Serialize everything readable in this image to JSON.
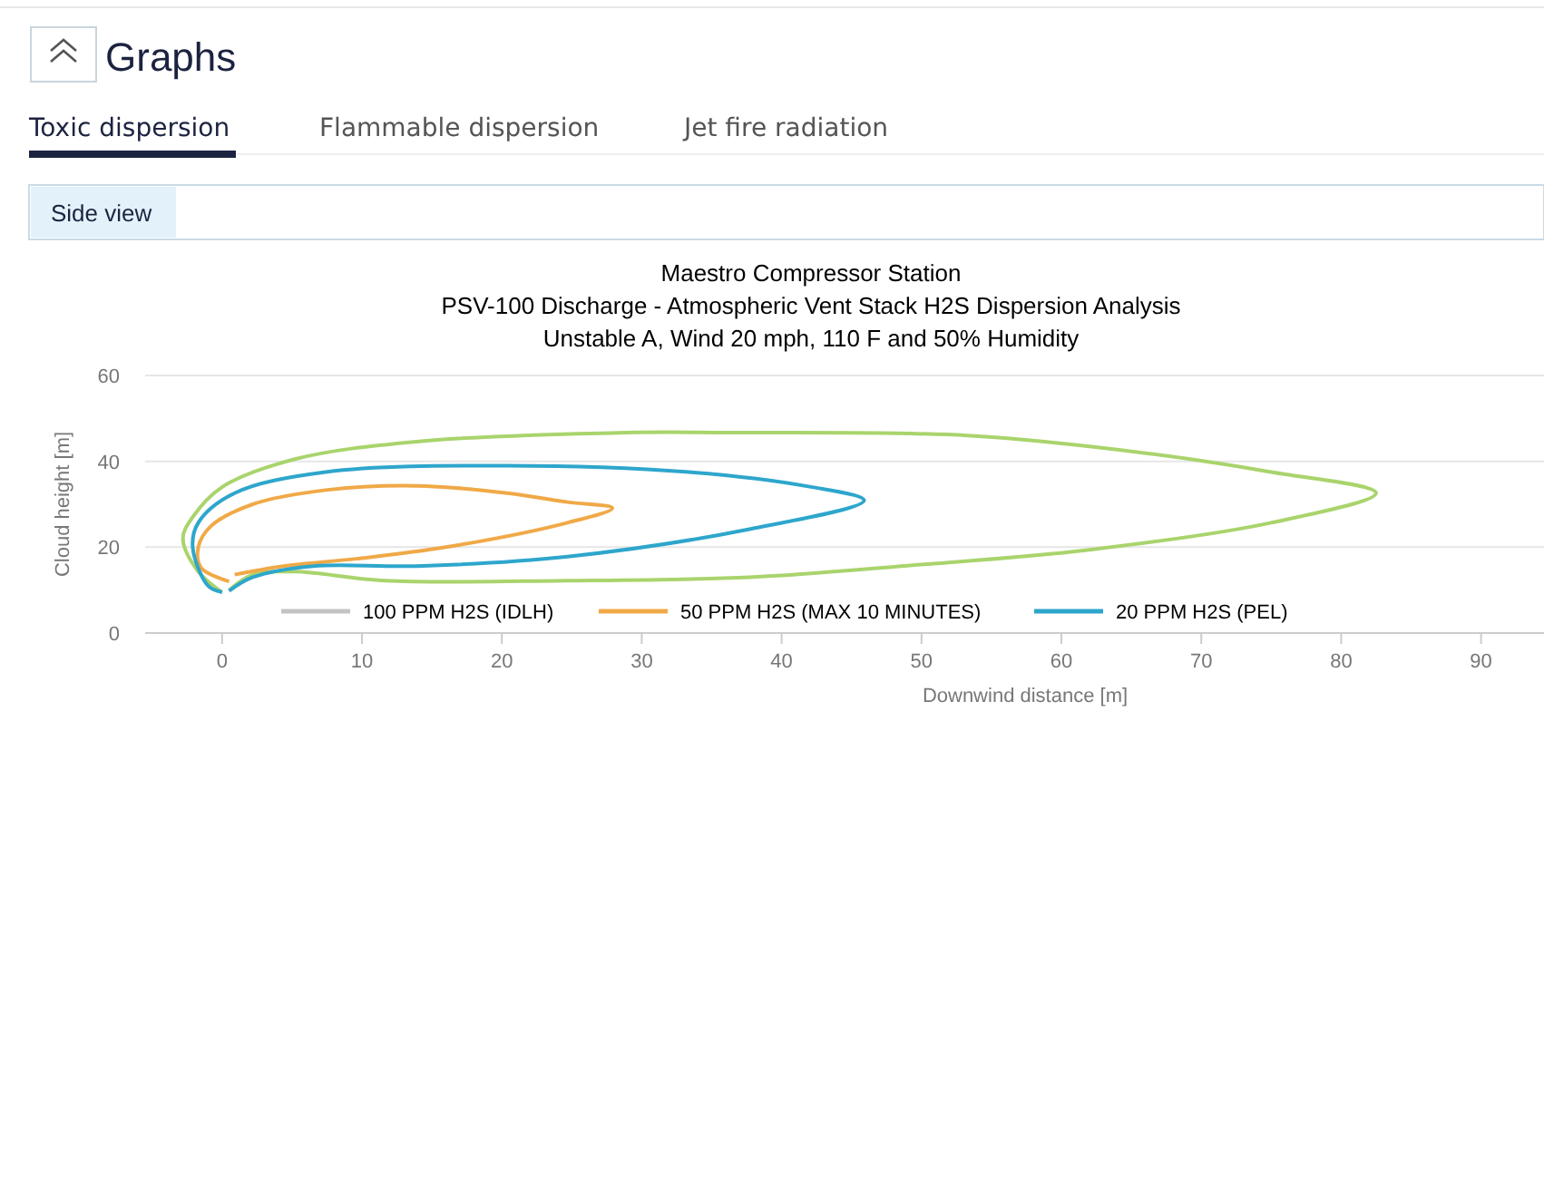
{
  "chart_data": {
    "type": "line",
    "title": "Maestro Compressor Station",
    "subtitle": "PSV-100 Discharge - Atmospheric Vent Stack H2S Dispersion Analysis\nUnstable A, Wind 20 mph, 110 F and 50% Humidity",
    "xlabel": "Downwind distance [m]",
    "ylabel": "Cloud height [m]",
    "annotations": [
      "Graphs",
      "Toxic dispersion",
      "Flammable dispersion",
      "Jet fire radiation",
      "Side view"
    ],
    "xlim": [
      -5.5,
      94.5
    ],
    "xticks": [
      0,
      10,
      20,
      30,
      40,
      50,
      60,
      70,
      80,
      90
    ],
    "ylim": [
      0,
      60
    ],
    "yticks": [
      0,
      20,
      40,
      60
    ],
    "grid": "y",
    "legend": "bottom",
    "marker": "none",
    "line_style": "solid",
    "series": [
      {
        "color": "#a9d46c",
        "x": [
          0,
          -1.7,
          -2.8,
          -2.1,
          0,
          5.2,
          13.9,
          29,
          36,
          53.3,
          66.3,
          75,
          82.5,
          75,
          62,
          49,
          37.7,
          24.7,
          11.7,
          5.2,
          2.2,
          0.5
        ],
        "values": [
          9.5,
          14.3,
          22,
          27,
          34,
          40.5,
          44.6,
          46.7,
          46.7,
          46,
          41.8,
          37.5,
          32.6,
          25.7,
          19.4,
          15.7,
          13,
          12.2,
          12.2,
          14.3,
          13.6,
          10
        ]
      },
      {
        "name": "50 PPM H2S (MAX 10 MINUTES)",
        "color": "#f0a947",
        "x": [
          0.5,
          -1.5,
          -1.7,
          -0.8,
          2.2,
          7.4,
          13.9,
          20.4,
          24.7,
          27.9,
          24.7,
          16,
          9.6,
          4.4,
          0.9
        ],
        "values": [
          12,
          15.2,
          20,
          24.9,
          30,
          33.3,
          34.3,
          32.6,
          30.5,
          29.1,
          25.7,
          20,
          17.3,
          15.6,
          13.6
        ]
      },
      {
        "name": "20 PPM H2S (PEL)",
        "color": "#2ea6cc",
        "x": [
          0,
          -1,
          -2.1,
          -1.7,
          0.9,
          7.4,
          20.4,
          33.4,
          42,
          45.9,
          37.7,
          24.7,
          13.9,
          6.5,
          2.2,
          0.5
        ],
        "values": [
          9.5,
          11,
          20,
          25.7,
          32.6,
          37.5,
          39,
          37.5,
          34.1,
          30.9,
          24.2,
          17.8,
          15.6,
          15.6,
          13,
          9.8
        ]
      },
      {
        "name": "100 PPM H2S (IDLH)",
        "color": "#c4c4c4"
      }
    ]
  }
}
